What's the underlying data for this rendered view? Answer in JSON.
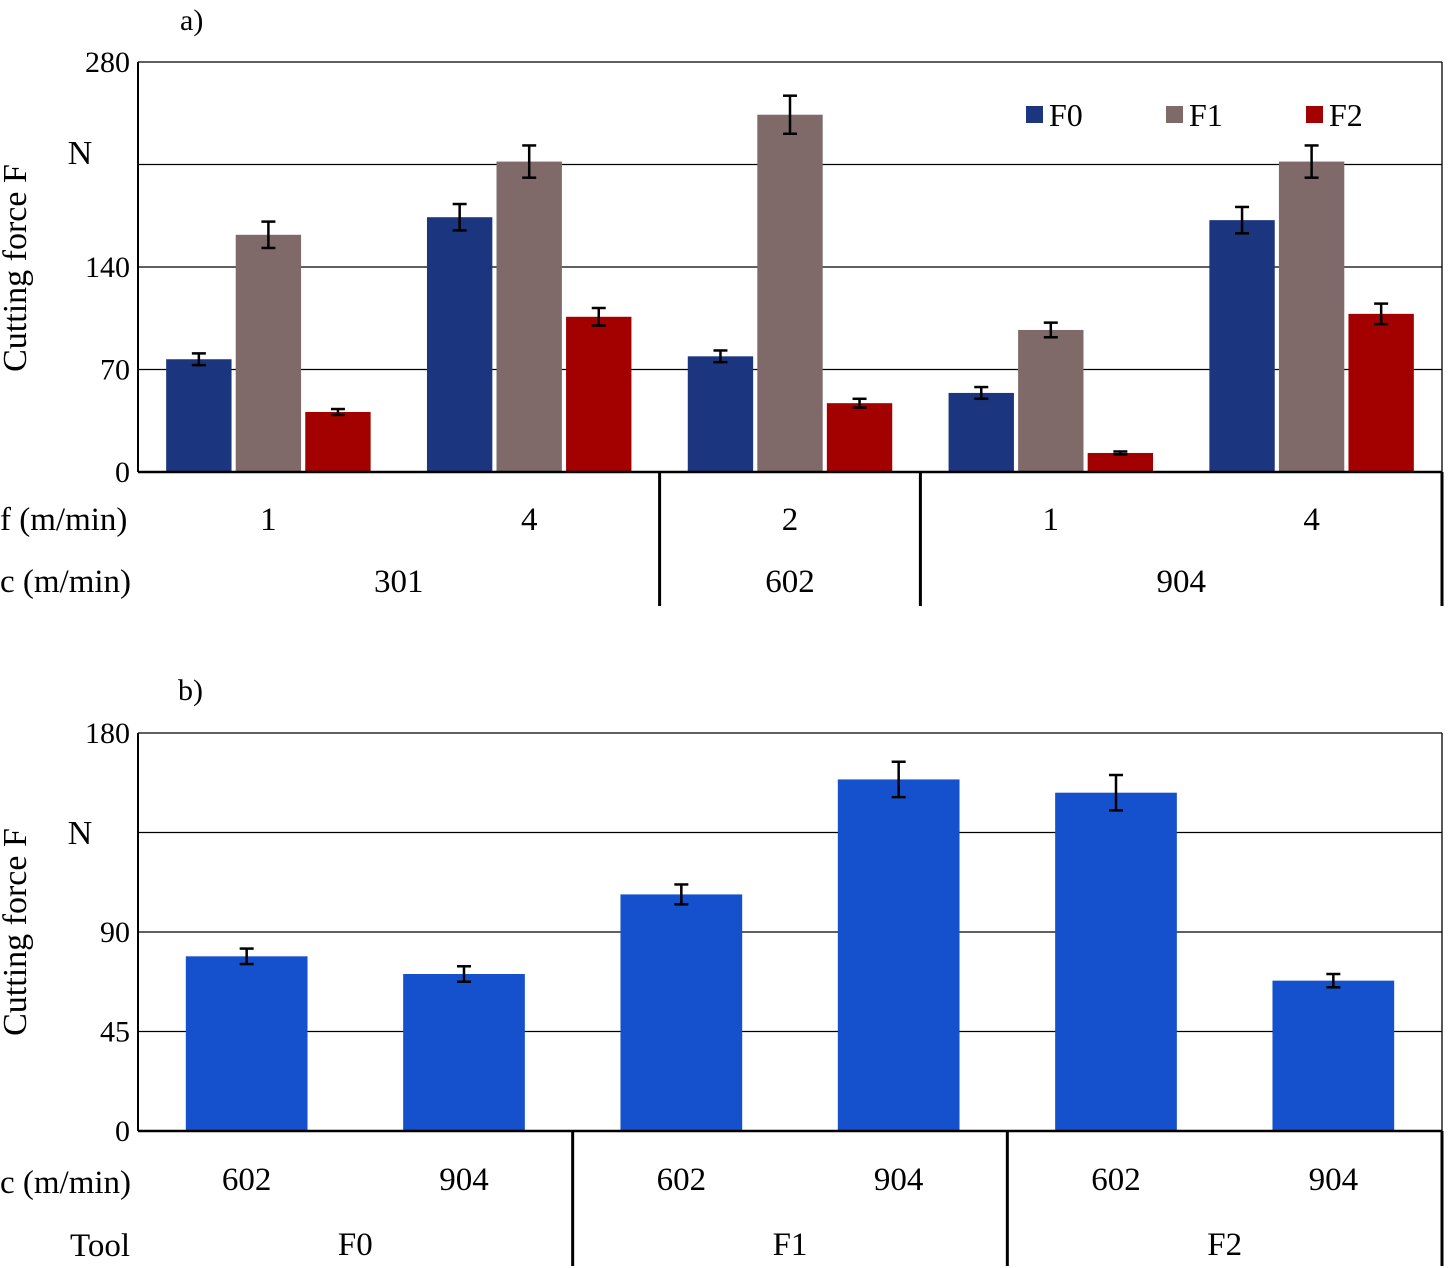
{
  "chart_data": [
    {
      "type": "bar",
      "panel_label": "a)",
      "ylabel": "Cutting force F",
      "yunit": "N",
      "ylim": [
        0,
        280
      ],
      "yticks": [
        "0",
        "70",
        "140",
        "280"
      ],
      "grid": true,
      "legend_position": "top-right",
      "categories": [
        {
          "vf": "1",
          "vc": "301"
        },
        {
          "vf": "4",
          "vc": "301"
        },
        {
          "vf": "2",
          "vc": "602"
        },
        {
          "vf": "1",
          "vc": "904"
        },
        {
          "vf": "4",
          "vc": "904"
        }
      ],
      "row_labels": {
        "vf": "f (m/min)",
        "vc": "c (m/min)"
      },
      "group_labels": [
        {
          "label": "301",
          "span": [
            0,
            1
          ]
        },
        {
          "label": "602",
          "span": [
            2,
            2
          ]
        },
        {
          "label": "904",
          "span": [
            3,
            4
          ]
        }
      ],
      "series": [
        {
          "name": "F0",
          "color": "#1b357e",
          "values": [
            77,
            174,
            79,
            54,
            172
          ],
          "errors": [
            4,
            9,
            4,
            4,
            9
          ]
        },
        {
          "name": "F1",
          "color": "#7f6a69",
          "values": [
            162,
            212,
            244,
            97,
            212
          ],
          "errors": [
            9,
            11,
            13,
            5,
            11
          ]
        },
        {
          "name": "F2",
          "color": "#a30000",
          "values": [
            41,
            106,
            47,
            13,
            108
          ],
          "errors": [
            2,
            6,
            3,
            1,
            7
          ]
        }
      ]
    },
    {
      "type": "bar",
      "panel_label": "b)",
      "ylabel": "Cutting force F",
      "yunit": "N",
      "ylim": [
        0,
        180
      ],
      "yticks": [
        "0",
        "45",
        "90",
        "180"
      ],
      "grid": true,
      "categories": [
        {
          "vc": "602",
          "tool": "F0"
        },
        {
          "vc": "904",
          "tool": "F0"
        },
        {
          "vc": "602",
          "tool": "F1"
        },
        {
          "vc": "904",
          "tool": "F1"
        },
        {
          "vc": "602",
          "tool": "F2"
        },
        {
          "vc": "904",
          "tool": "F2"
        }
      ],
      "row_labels": {
        "vc": "c (m/min)",
        "tool": "Tool"
      },
      "group_labels": [
        {
          "label": "F0",
          "span": [
            0,
            1
          ]
        },
        {
          "label": "F1",
          "span": [
            2,
            3
          ]
        },
        {
          "label": "F2",
          "span": [
            4,
            5
          ]
        }
      ],
      "series": [
        {
          "color": "#1551cd",
          "values": [
            79,
            71,
            107,
            159,
            153,
            68
          ],
          "errors": [
            3.5,
            3.5,
            4.5,
            8,
            8,
            3
          ]
        }
      ]
    }
  ]
}
